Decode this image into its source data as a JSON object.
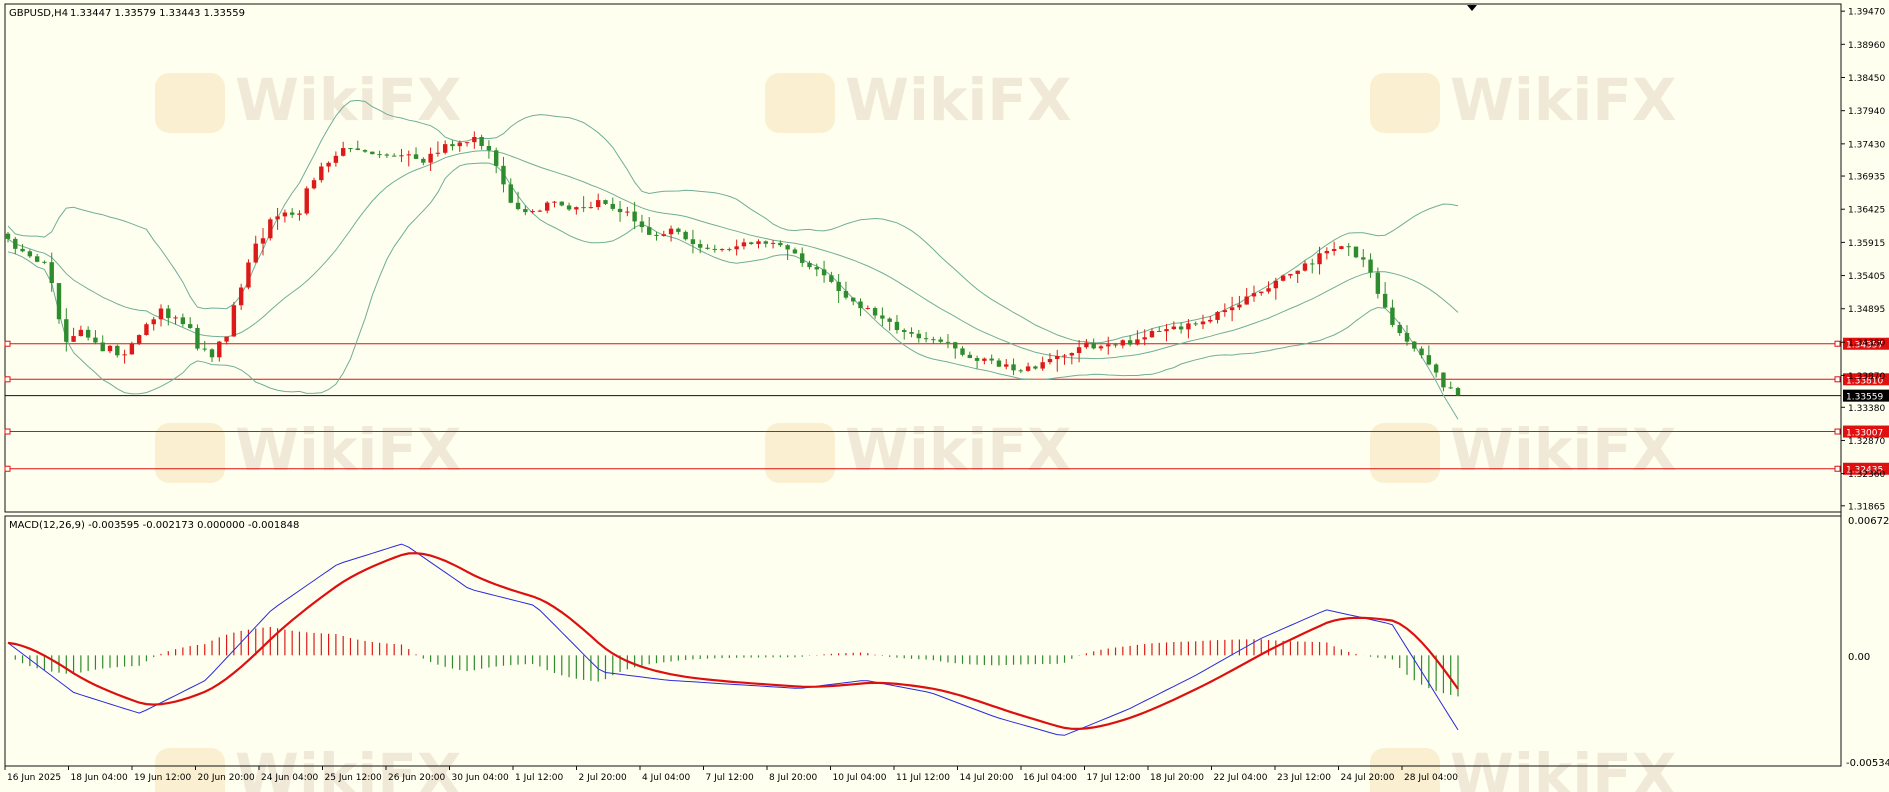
{
  "price_pane": {
    "symbol_label": "GBPUSD,H4",
    "ohlc_values": "1.33447 1.33579 1.33443 1.33559",
    "axis_labels": [
      "1.39470",
      "1.38960",
      "1.38450",
      "1.37940",
      "1.37430",
      "1.36935",
      "1.36425",
      "1.35915",
      "1.35405",
      "1.34895",
      "1.34380",
      "1.33870",
      "1.33380",
      "1.32870",
      "1.32360",
      "1.31865"
    ],
    "current_price": "1.33559",
    "levels": [
      {
        "price": 1.34357,
        "label": "1.34357"
      },
      {
        "price": 1.3381,
        "label": "1.33810"
      },
      {
        "price": 1.33007,
        "label": "1.33007"
      },
      {
        "price": 1.32435,
        "label": "1.32435"
      }
    ],
    "price_range": [
      1.3177,
      1.3958
    ],
    "watermark": "WikiFX"
  },
  "macd_pane": {
    "label": "MACD(12,26,9) -0.003595 -0.002173 0.000000 -0.001848",
    "axis_top": "0.006727",
    "axis_zero": "0.00",
    "axis_bottom": "-0.005342"
  },
  "x_axis_labels": [
    "16 Jun 2025",
    "18 Jun 04:00",
    "19 Jun 12:00",
    "20 Jun 20:00",
    "24 Jun 04:00",
    "25 Jun 12:00",
    "26 Jun 20:00",
    "30 Jun 04:00",
    "1 Jul 12:00",
    "2 Jul 20:00",
    "4 Jul 04:00",
    "7 Jul 12:00",
    "8 Jul 20:00",
    "10 Jul 04:00",
    "11 Jul 12:00",
    "14 Jul 20:00",
    "16 Jul 04:00",
    "17 Jul 12:00",
    "18 Jul 20:00",
    "22 Jul 04:00",
    "23 Jul 12:00",
    "24 Jul 20:00",
    "28 Jul 04:00"
  ],
  "colors": {
    "background": "#fffff0",
    "bull": "#dd1a1a",
    "bear": "#2e8b2e",
    "band": "#6fae98",
    "level": "#e01010",
    "macd_line": "#2a2ad8",
    "signal_line": "#dd1010"
  },
  "chart_data": {
    "type": "candlestick",
    "series": [
      {
        "name": "close (key points, approximate)",
        "x": [
          "16 Jun 2025",
          "18 Jun 04:00",
          "19 Jun 12:00",
          "20 Jun 20:00",
          "24 Jun 04:00",
          "25 Jun 12:00",
          "26 Jun 20:00",
          "30 Jun 04:00",
          "1 Jul 12:00",
          "2 Jul 20:00",
          "4 Jul 04:00",
          "7 Jul 12:00",
          "8 Jul 20:00",
          "10 Jul 04:00",
          "11 Jul 12:00",
          "14 Jul 20:00",
          "16 Jul 04:00",
          "17 Jul 12:00",
          "18 Jul 20:00",
          "22 Jul 04:00",
          "23 Jul 12:00",
          "24 Jul 20:00",
          "28 Jul 04:00"
        ],
        "values": [
          1.3597,
          1.3425,
          1.3418,
          1.3439,
          1.3636,
          1.3729,
          1.373,
          1.3731,
          1.3748,
          1.3641,
          1.3649,
          1.3593,
          1.3578,
          1.359,
          1.3482,
          1.342,
          1.3395,
          1.343,
          1.3469,
          1.3516,
          1.3586,
          1.3464,
          1.3409
        ]
      },
      {
        "name": "macd (key points, approximate)",
        "values": [
          0.0006,
          -0.0018,
          -0.0028,
          -0.0012,
          0.0022,
          0.0044,
          0.0054,
          0.0032,
          0.0024,
          -0.0008,
          -0.0012,
          -0.0014,
          -0.0016,
          -0.0012,
          -0.0018,
          -0.003,
          -0.0039,
          -0.0026,
          -0.001,
          0.0008,
          0.0022,
          0.0015,
          -0.0036
        ]
      }
    ],
    "y_range": [
      1.3177,
      1.3958
    ],
    "macd_range": [
      -0.005342,
      0.006727
    ]
  }
}
